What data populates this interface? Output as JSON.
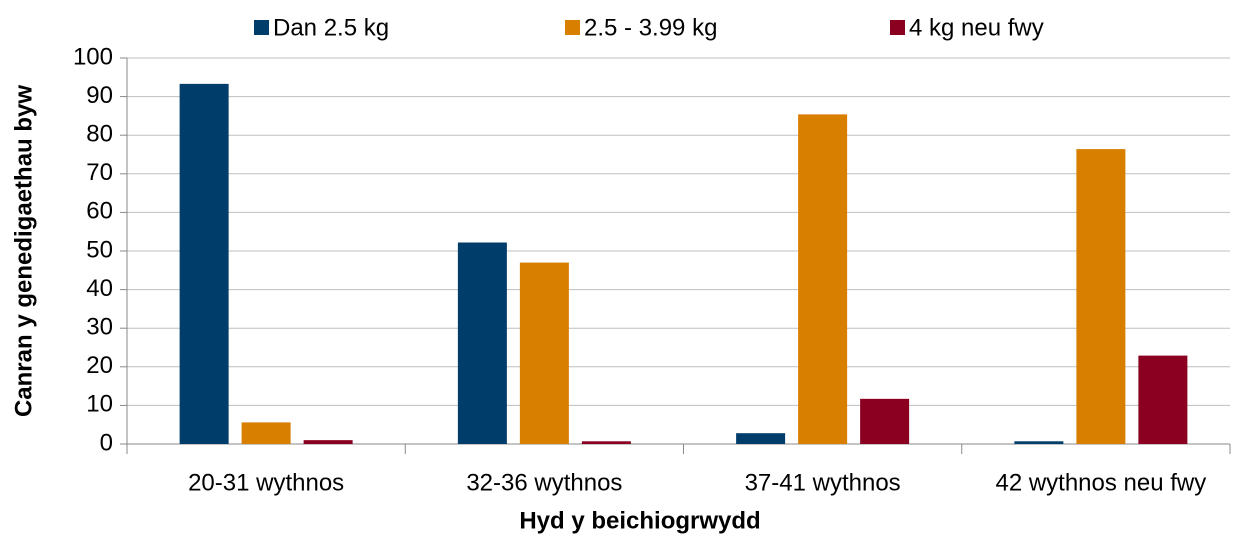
{
  "chart_data": {
    "type": "bar",
    "x_label": "Hyd y beichiogrwydd",
    "y_label": "Canran y genedigaethau byw",
    "categories": [
      "20-31 wythnos",
      "32-36 wythnos",
      "37-41 wythnos",
      "42 wythnos neu fwy"
    ],
    "series": [
      {
        "name": "Dan 2.5 kg",
        "color": "#003d6b",
        "values": [
          93.3,
          52.2,
          2.8,
          0.7
        ]
      },
      {
        "name": "2.5 - 3.99 kg",
        "color": "#d97f00",
        "values": [
          5.6,
          47,
          85.4,
          76.4
        ]
      },
      {
        "name": "4 kg neu fwy",
        "color": "#8b0021",
        "values": [
          1,
          0.7,
          11.7,
          22.9
        ]
      }
    ],
    "ylim": [
      0,
      100
    ],
    "yticks": [
      0,
      10,
      20,
      30,
      40,
      50,
      60,
      70,
      80,
      90,
      100
    ],
    "grid": true,
    "legend": "top"
  }
}
